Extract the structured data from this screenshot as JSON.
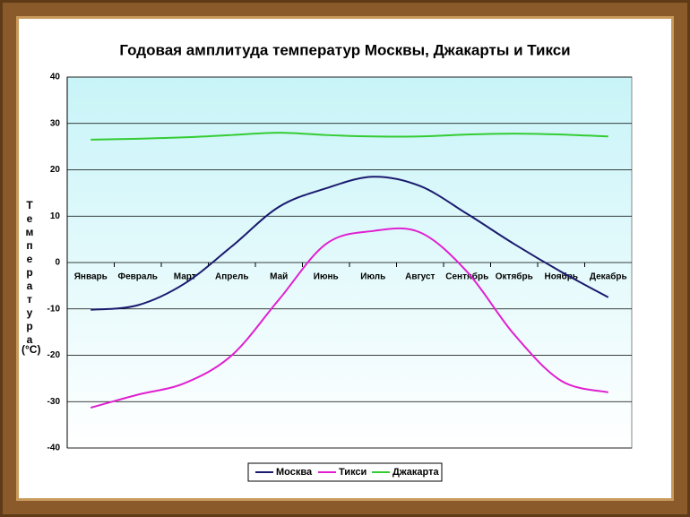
{
  "chart_data": {
    "type": "line",
    "title": "Годовая амплитуда температур Москвы, Джакарты и Тикси",
    "y_label": "Температура",
    "y_unit": "(°C)",
    "categories": [
      "Январь",
      "Февраль",
      "Март",
      "Апрель",
      "Май",
      "Июнь",
      "Июль",
      "Август",
      "Сентябрь",
      "Октябрь",
      "Ноябрь",
      "Декабрь"
    ],
    "series": [
      {
        "name": "Москва",
        "color": "#1a1a6e",
        "values": [
          -10.2,
          -9.2,
          -4.5,
          3.5,
          12,
          16,
          18.5,
          16.5,
          10.5,
          4,
          -2,
          -7.5
        ]
      },
      {
        "name": "Тикси",
        "color": "#e020d0",
        "values": [
          -31.3,
          -28.5,
          -26,
          -20,
          -8,
          4,
          6.8,
          6.5,
          -2,
          -15.5,
          -25.5,
          -28
        ]
      },
      {
        "name": "Джакарта",
        "color": "#33cc33",
        "values": [
          26.5,
          26.7,
          27,
          27.5,
          28,
          27.5,
          27.2,
          27.2,
          27.6,
          27.8,
          27.6,
          27.2
        ]
      }
    ],
    "ylim": [
      -40,
      40
    ],
    "yticks": [
      -40,
      -30,
      -20,
      -10,
      0,
      10,
      20,
      30,
      40
    ],
    "grid": true,
    "legend": "bottom"
  }
}
